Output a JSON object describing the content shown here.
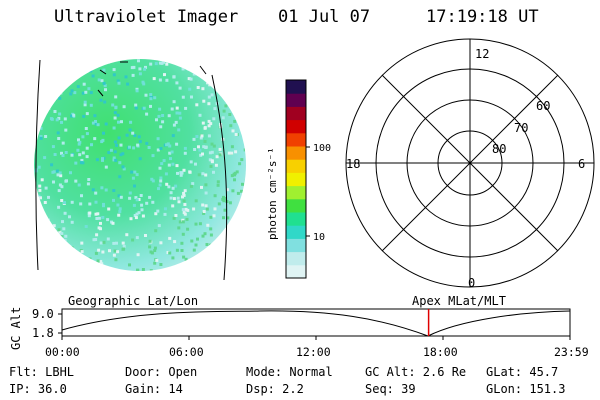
{
  "header": {
    "title": "Ultraviolet Imager",
    "date": "01 Jul 07",
    "time": "17:19:18 UT"
  },
  "colorbar": {
    "unit_label": "photon cm⁻²s⁻¹",
    "tick_100": "100",
    "tick_10": "10",
    "colors": [
      "#e0f4f4",
      "#c0ecec",
      "#80e0e0",
      "#30d8c8",
      "#20e090",
      "#40e040",
      "#a0f030",
      "#f0f000",
      "#f8d000",
      "#f89000",
      "#f04000",
      "#d00000",
      "#a00020",
      "#600050",
      "#201050"
    ]
  },
  "polar_plot": {
    "mlt_labels": {
      "top": "12",
      "left": "18",
      "right": "6",
      "bottom": "0"
    },
    "lat_labels": [
      "60",
      "70",
      "80"
    ]
  },
  "orbit_plot": {
    "ylabel": "GC Alt",
    "yticks": [
      "9.0",
      "1.8"
    ],
    "left_title": "Geographic Lat/Lon",
    "right_title": "Apex MLat/MLT",
    "xticks": [
      "00:00",
      "06:00",
      "12:00",
      "18:00",
      "23:59"
    ],
    "marker_time_hours": 17.32,
    "marker_color": "#e00000"
  },
  "info": {
    "row1": {
      "flt": "Flt: LBHL",
      "door": "Door: Open",
      "mode": "Mode: Normal",
      "gcalt": "GC Alt: 2.6 Re",
      "glat": "GLat:  45.7"
    },
    "row2": {
      "ip": "IP: 36.0",
      "gain": "Gain: 14",
      "dsp": "Dsp:    2.2",
      "seq": "Seq: 39",
      "glon": "GLon: 151.3"
    }
  }
}
